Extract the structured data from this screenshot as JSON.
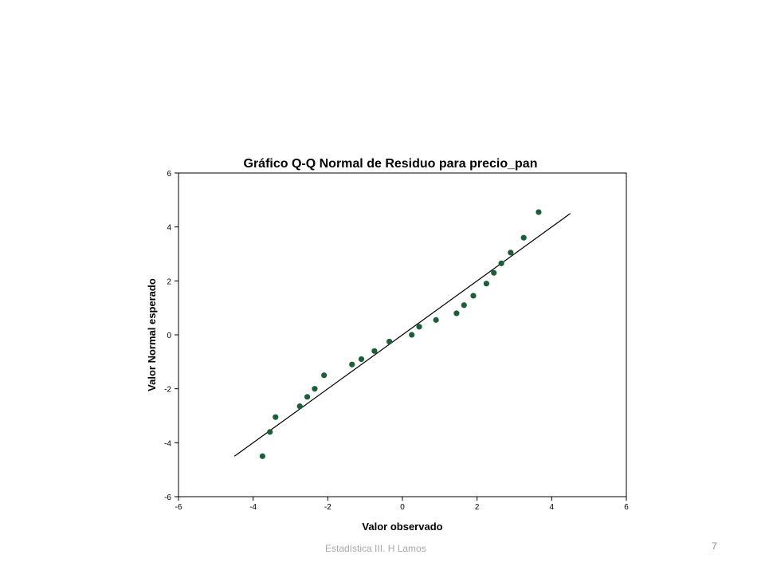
{
  "chart_data": {
    "type": "scatter",
    "title": "Gráfico Q-Q Normal de Residuo para precio_pan",
    "xlabel": "Valor observado",
    "ylabel": "Valor Normal esperado",
    "xlim": [
      -6,
      6
    ],
    "ylim": [
      -6,
      6
    ],
    "xticks": [
      "-6",
      "-4",
      "-2",
      "0",
      "2",
      "4",
      "6"
    ],
    "yticks": [
      "-6",
      "-4",
      "-2",
      "0",
      "2",
      "4",
      "6"
    ],
    "grid": false,
    "legend": "none",
    "point_color": "#1a5e3a",
    "reference_line": {
      "x": [
        -4.5,
        4.5
      ],
      "y": [
        -4.5,
        4.5
      ]
    },
    "points": [
      {
        "x": -3.75,
        "y": -4.5
      },
      {
        "x": -3.55,
        "y": -3.6
      },
      {
        "x": -3.4,
        "y": -3.05
      },
      {
        "x": -2.75,
        "y": -2.65
      },
      {
        "x": -2.55,
        "y": -2.3
      },
      {
        "x": -2.35,
        "y": -2.0
      },
      {
        "x": -2.1,
        "y": -1.5
      },
      {
        "x": -1.35,
        "y": -1.1
      },
      {
        "x": -1.1,
        "y": -0.9
      },
      {
        "x": -0.75,
        "y": -0.6
      },
      {
        "x": -0.35,
        "y": -0.25
      },
      {
        "x": 0.25,
        "y": 0.0
      },
      {
        "x": 0.45,
        "y": 0.3
      },
      {
        "x": 0.9,
        "y": 0.55
      },
      {
        "x": 1.45,
        "y": 0.8
      },
      {
        "x": 1.65,
        "y": 1.1
      },
      {
        "x": 1.9,
        "y": 1.45
      },
      {
        "x": 2.25,
        "y": 1.9
      },
      {
        "x": 2.45,
        "y": 2.3
      },
      {
        "x": 2.65,
        "y": 2.65
      },
      {
        "x": 2.9,
        "y": 3.05
      },
      {
        "x": 3.25,
        "y": 3.6
      },
      {
        "x": 3.65,
        "y": 4.55
      }
    ]
  },
  "footer": {
    "text": "Estadística III. H Lamos",
    "page_number": "7"
  }
}
